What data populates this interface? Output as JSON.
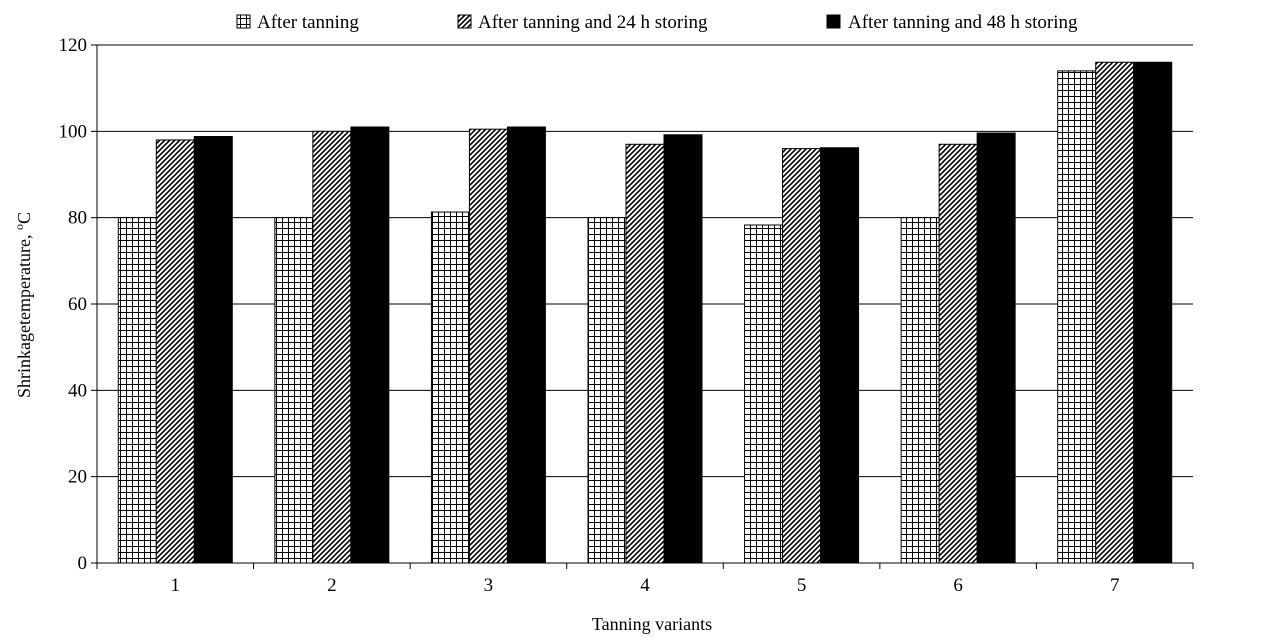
{
  "chart_data": {
    "type": "bar",
    "title": "",
    "xlabel": "Tanning variants",
    "ylabel": "Shrinkagetemperature, ",
    "ylabel_unit_sup": "o",
    "ylabel_unit": "C",
    "categories": [
      "1",
      "2",
      "3",
      "4",
      "5",
      "6",
      "7"
    ],
    "ylim": [
      0,
      120
    ],
    "yticks": [
      0,
      20,
      40,
      60,
      80,
      100,
      120
    ],
    "grid": "horizontal",
    "legend_position": "top",
    "series": [
      {
        "name": "After tanning",
        "pattern": "grid",
        "color": "#000000",
        "values": [
          80,
          80,
          81.3,
          80,
          78.3,
          80,
          114
        ]
      },
      {
        "name": "After tanning and 24 h storing",
        "pattern": "diagonal",
        "color": "#000000",
        "values": [
          98,
          100,
          100.5,
          97,
          96,
          97,
          116
        ]
      },
      {
        "name": "After tanning and 48 h storing",
        "pattern": "solid",
        "color": "#000000",
        "values": [
          98.8,
          101,
          101,
          99.2,
          96.2,
          99.6,
          116
        ]
      }
    ]
  }
}
